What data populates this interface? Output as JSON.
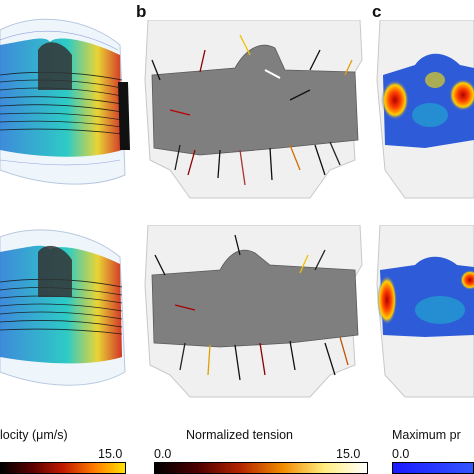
{
  "panels": [
    {
      "id": "a",
      "letter": ""
    },
    {
      "id": "b",
      "letter": "b"
    },
    {
      "id": "c",
      "letter": "c"
    }
  ],
  "colorbars": [
    {
      "label": "locity (μm/s)",
      "min": "",
      "max": "15.0",
      "gradient": [
        "#000000",
        "#5a0000",
        "#c01b00",
        "#ff7a00",
        "#ffe000"
      ]
    },
    {
      "label": "Normalized tension",
      "min": "0.0",
      "max": "15.0",
      "gradient": [
        "#000000",
        "#4d0000",
        "#b32400",
        "#f08a00",
        "#ffee80",
        "#ffffff"
      ]
    },
    {
      "label": "Maximum pr",
      "min": "0.0",
      "max": "",
      "gradient": [
        "#1a1aff",
        "#3355ff"
      ]
    }
  ],
  "colors": {
    "background": "#ffffff",
    "vessel_gray": "#7f7f7f",
    "shell": "#e6e6e6",
    "stream_blue": "#1fb3e8",
    "stream_black": "#111111",
    "pressure_blue": "#2e5bd8",
    "pressure_red": "#e02020"
  }
}
